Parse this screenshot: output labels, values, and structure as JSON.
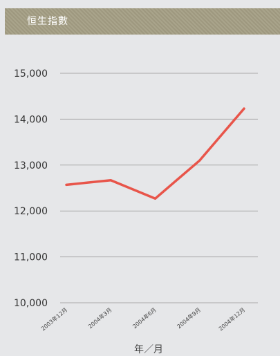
{
  "header": {
    "title": "恒生指數"
  },
  "colors": {
    "background": "#e6e7e9",
    "header": "#a49e84",
    "line": "#e8554a",
    "grid": "#a9a9a9"
  },
  "chart_data": {
    "type": "line",
    "title": "恒生指數",
    "xlabel": "年／月",
    "ylabel": "",
    "categories": [
      "2003年12月",
      "2004年3月",
      "2004年6月",
      "2004年9月",
      "2004年12月"
    ],
    "series": [
      {
        "values": [
          12570,
          12670,
          12270,
          13100,
          14230
        ]
      }
    ],
    "ylim": [
      10000,
      15000
    ],
    "yticks": [
      10000,
      11000,
      12000,
      13000,
      14000,
      15000
    ],
    "ytick_labels": [
      "10,000",
      "11,000",
      "12,000",
      "13,000",
      "14,000",
      "15,000"
    ],
    "grid": true,
    "legend": "none"
  }
}
